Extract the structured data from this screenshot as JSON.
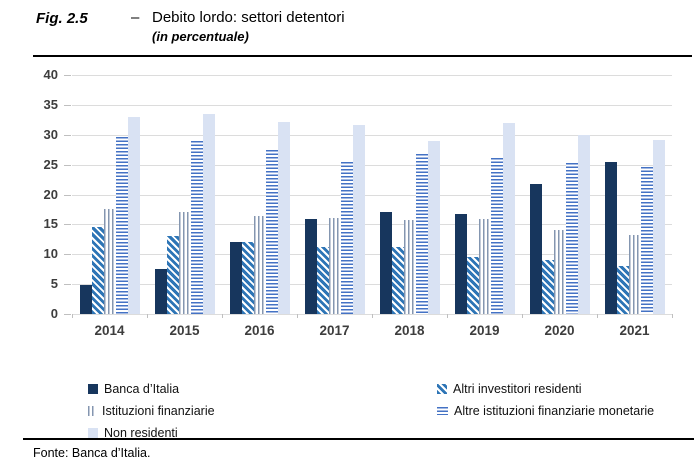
{
  "figure": {
    "label": "Fig. 2.5",
    "dash": "–",
    "title": "Debito lordo: settori detentori",
    "subtitle": "(in percentuale)",
    "source": "Fonte: Banca d’Italia."
  },
  "chart_data": {
    "type": "bar",
    "title": "Debito lordo: settori detentori",
    "subtitle": "(in percentuale)",
    "categories": [
      "2014",
      "2015",
      "2016",
      "2017",
      "2018",
      "2019",
      "2020",
      "2021"
    ],
    "series": [
      {
        "name": "Banca d’Italia",
        "pattern": "solid-dark",
        "color": "#17365d",
        "values": [
          4.9,
          7.6,
          12.1,
          15.9,
          17.0,
          16.8,
          21.7,
          25.4
        ]
      },
      {
        "name": "Altri investitori residenti",
        "pattern": "diagonal",
        "color": "#2e75b6",
        "values": [
          14.6,
          13.0,
          12.1,
          11.2,
          11.2,
          9.6,
          9.0,
          8.0
        ]
      },
      {
        "name": "Istituzioni finanziarie",
        "pattern": "vlines",
        "color": "#8496b0",
        "values": [
          17.6,
          17.0,
          16.4,
          16.1,
          15.7,
          15.9,
          14.1,
          13.2
        ]
      },
      {
        "name": "Altre istituzioni finanziarie monetarie",
        "pattern": "hlines",
        "color": "#4472c4",
        "values": [
          29.6,
          28.9,
          27.5,
          25.4,
          26.8,
          26.1,
          25.3,
          24.6
        ]
      },
      {
        "name": "Non residenti",
        "pattern": "solid-light",
        "color": "#d9e2f3",
        "values": [
          33.0,
          33.5,
          32.2,
          31.7,
          29.0,
          31.9,
          30.0,
          29.2
        ]
      }
    ],
    "ylim": [
      0,
      40
    ],
    "yticks": [
      0,
      5,
      10,
      15,
      20,
      25,
      30,
      35,
      40
    ],
    "grid": true,
    "legend_position": "bottom",
    "legend_layout": [
      [
        0,
        1
      ],
      [
        2,
        3
      ],
      [
        4
      ]
    ],
    "gridline_color": "#dcdcdc",
    "axis_label_color": "#3d3d3d"
  }
}
